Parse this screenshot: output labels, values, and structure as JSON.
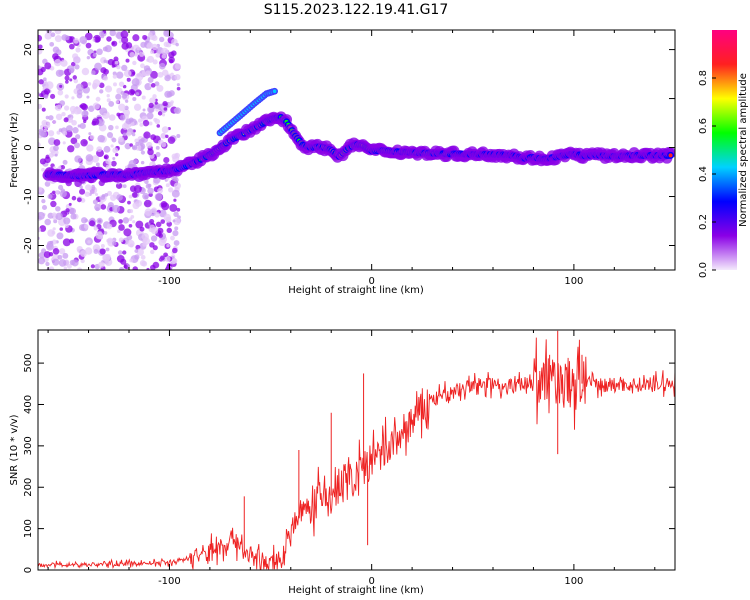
{
  "title": "S115.2023.122.19.41.G17",
  "chart_data": [
    {
      "type": "heatmap",
      "xlabel": "Height of straight line (km)",
      "ylabel": "Frequency (Hz)",
      "xlim": [
        -165,
        150
      ],
      "ylim": [
        -25,
        24
      ],
      "x_ticks": [
        -100,
        0,
        100
      ],
      "y_ticks": [
        -20,
        -10,
        0,
        10,
        20
      ],
      "colorbar": {
        "label": "Normalized spectral amplitude",
        "range": [
          0,
          1
        ],
        "ticks": [
          "0.0",
          "0.2",
          "0.4",
          "0.6",
          "0.8"
        ],
        "colors": [
          "#f4eafc",
          "#8a00e6",
          "#0000ff",
          "#00d2ff",
          "#00ff00",
          "#ffff00",
          "#ff2020",
          "#ff0080"
        ]
      },
      "dominant_frequency_track": {
        "x": [
          -160,
          -145,
          -130,
          -120,
          -110,
          -100,
          -95,
          -90,
          -80,
          -70,
          -60,
          -50,
          -45,
          -42,
          -38,
          -34,
          -30,
          -25,
          -20,
          -16,
          -12,
          -8,
          -5,
          0,
          5,
          10,
          20,
          30,
          40,
          50,
          60,
          70,
          75,
          80,
          85,
          90,
          95,
          100,
          105,
          110,
          120,
          130,
          140,
          148
        ],
        "y": [
          -5.5,
          -5.8,
          -5.5,
          -5.6,
          -5,
          -4.8,
          -4.2,
          -3.5,
          -1.5,
          1.5,
          3.5,
          5.8,
          6.2,
          5.2,
          2.5,
          0.5,
          0,
          0.2,
          -0.5,
          -1.8,
          -0.2,
          0.6,
          0.5,
          -0.7,
          -0.6,
          -0.8,
          -1,
          -1.2,
          -1.3,
          -1.4,
          -1.4,
          -1.6,
          -2.2,
          -2,
          -2.4,
          -2,
          -1.6,
          -1.3,
          -1.7,
          -1.5,
          -1.8,
          -1.6,
          -1.6,
          -1.6
        ]
      },
      "secondary_branch": {
        "x": [
          -75,
          -65,
          -58,
          -52,
          -48
        ],
        "y": [
          3,
          6.5,
          9,
          11,
          11.5
        ]
      },
      "noise_region_x": [
        -165,
        -95
      ]
    },
    {
      "type": "line",
      "xlabel": "Height of straight line (km)",
      "ylabel": "SNR (10 * v/v)",
      "xlim": [
        -165,
        150
      ],
      "ylim": [
        0,
        580
      ],
      "x_ticks": [
        -100,
        0,
        100
      ],
      "y_ticks": [
        0,
        100,
        200,
        300,
        400,
        500
      ],
      "color": "#ee2222",
      "envelope": {
        "x": [
          -165,
          -130,
          -100,
          -85,
          -75,
          -68,
          -63,
          -58,
          -50,
          -45,
          -38,
          -30,
          -20,
          -10,
          0,
          10,
          20,
          30,
          40,
          50,
          60,
          70,
          80,
          88,
          95,
          105,
          120,
          150
        ],
        "y": [
          12,
          14,
          18,
          35,
          55,
          80,
          45,
          30,
          10,
          30,
          120,
          160,
          180,
          220,
          260,
          300,
          360,
          410,
          430,
          445,
          450,
          445,
          455,
          460,
          455,
          450,
          448,
          448
        ]
      },
      "spikes": [
        {
          "x": -63,
          "y": 178
        },
        {
          "x": -36,
          "y": 290
        },
        {
          "x": -20,
          "y": 380
        },
        {
          "x": -4,
          "y": 475
        },
        {
          "x": -2,
          "y": 60
        },
        {
          "x": 88,
          "y": 520
        },
        {
          "x": 92,
          "y": 578
        },
        {
          "x": 92,
          "y": 280
        },
        {
          "x": 104,
          "y": 520
        }
      ]
    }
  ]
}
